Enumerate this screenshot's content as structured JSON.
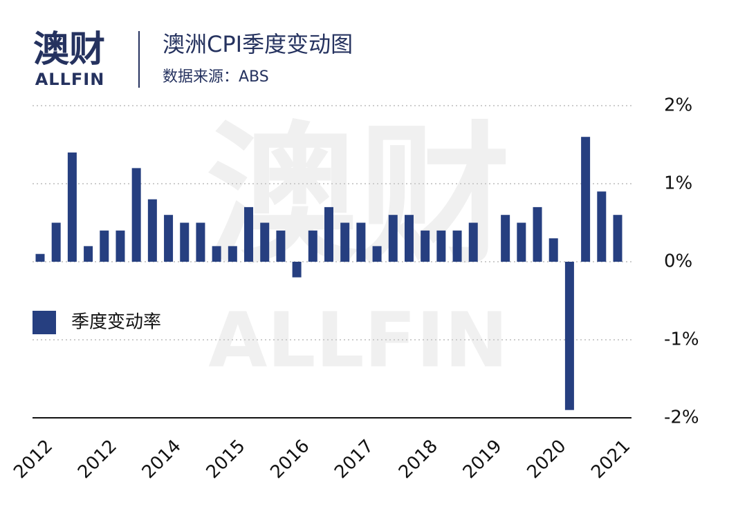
{
  "logo": {
    "name": "澳财",
    "sub": "ALLFIN"
  },
  "watermark": {
    "name": "澳财",
    "sub": "ALLFIN"
  },
  "chart_data": {
    "type": "bar",
    "title": "澳洲CPI季度变动图",
    "subtitle": "数据来源：ABS",
    "categories": [
      "2012",
      null,
      null,
      null,
      "2012",
      null,
      null,
      null,
      "2014",
      null,
      null,
      null,
      "2015",
      null,
      null,
      null,
      "2016",
      null,
      null,
      null,
      "2017",
      null,
      null,
      null,
      "2018",
      null,
      null,
      null,
      "2019",
      null,
      null,
      null,
      "2020",
      null,
      null,
      null,
      "2021"
    ],
    "series": [
      {
        "name": "季度变动率",
        "color": "#263f80",
        "values": [
          0.1,
          0.5,
          1.4,
          0.2,
          0.4,
          0.4,
          1.2,
          0.8,
          0.6,
          0.5,
          0.5,
          0.2,
          0.2,
          0.7,
          0.5,
          0.4,
          -0.2,
          0.4,
          0.7,
          0.5,
          0.5,
          0.2,
          0.6,
          0.6,
          0.4,
          0.4,
          0.4,
          0.5,
          0,
          0.6,
          0.5,
          0.7,
          0.3,
          -1.9,
          1.6,
          0.9,
          0.6
        ]
      }
    ],
    "ylim": [
      -2,
      2
    ],
    "yticks": [
      {
        "value": 2,
        "label": "2%"
      },
      {
        "value": 1,
        "label": "1%"
      },
      {
        "value": 0,
        "label": "0%"
      },
      {
        "value": -1,
        "label": "-1%"
      },
      {
        "value": -2,
        "label": "-2%"
      }
    ],
    "grid": true,
    "legend": "left"
  }
}
